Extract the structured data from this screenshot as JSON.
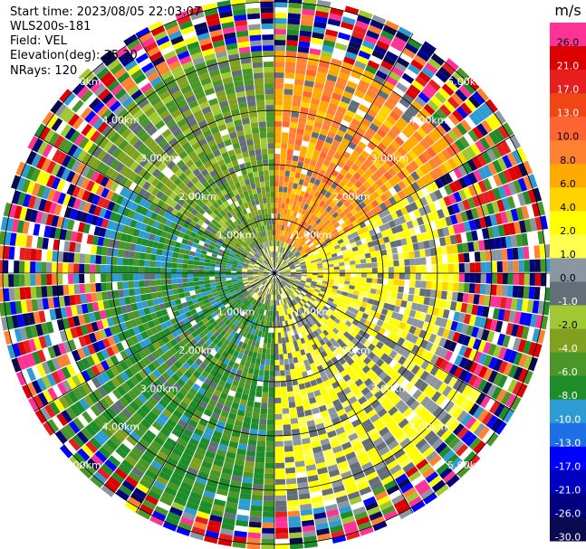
{
  "header": {
    "start_time": "Start time: 2023/08/05 22:03:07",
    "instrument": "WLS200s-181",
    "field": "Field: VEL",
    "elevation": "Elevation(deg): 35.30",
    "nrays": "NRays: 120"
  },
  "colorbar": {
    "unit": "m/s",
    "levels": [
      {
        "label": "-30.0",
        "color": "#0a0a50"
      },
      {
        "label": "-26.0",
        "color": "#000080"
      },
      {
        "label": "-21.0",
        "color": "#0000c0"
      },
      {
        "label": "-17.0",
        "color": "#0000ff"
      },
      {
        "label": "-13.0",
        "color": "#1e6ee6"
      },
      {
        "label": "-10.0",
        "color": "#2e9bd2"
      },
      {
        "label": "-8.0",
        "color": "#1e8c28"
      },
      {
        "label": "-6.0",
        "color": "#4a9628"
      },
      {
        "label": "-4.0",
        "color": "#82a020"
      },
      {
        "label": "-2.0",
        "color": "#a0c832"
      },
      {
        "label": "-1.0",
        "color": "#646e78"
      },
      {
        "label": "0.0",
        "color": "#8c96a0"
      },
      {
        "label": "1.0",
        "color": "#ffff50"
      },
      {
        "label": "2.0",
        "color": "#ffff00"
      },
      {
        "label": "4.0",
        "color": "#ffd200"
      },
      {
        "label": "6.0",
        "color": "#ffaa00"
      },
      {
        "label": "8.0",
        "color": "#ff8232"
      },
      {
        "label": "10.0",
        "color": "#ff6432"
      },
      {
        "label": "13.0",
        "color": "#f04616"
      },
      {
        "label": "17.0",
        "color": "#e61e1e"
      },
      {
        "label": "21.0",
        "color": "#dc0000"
      },
      {
        "label": "26.0",
        "color": "#ff3296"
      }
    ]
  },
  "chart_data": {
    "type": "heatmap",
    "projection": "polar-ppi",
    "field": "VEL",
    "nrays": 120,
    "range_unit": "km",
    "range_rings": [
      "1.00km",
      "2.00km",
      "3.00km",
      "4.00km",
      "5.00km"
    ],
    "ring_values_km": [
      1,
      2,
      3,
      4,
      5
    ],
    "max_range_km": 5.1,
    "spoke_azimuths_deg": [
      0,
      30,
      60,
      90,
      120,
      150,
      180,
      210,
      240,
      270,
      300,
      330
    ],
    "sectors": [
      {
        "az_from": 0,
        "az_to": 60,
        "near_value": 8.0,
        "noise_from_km": 4.1
      },
      {
        "az_from": 60,
        "az_to": 120,
        "near_value": 2.0,
        "noise_from_km": 3.4
      },
      {
        "az_from": 120,
        "az_to": 180,
        "near_value": 1.5,
        "noise_from_km": 4.4
      },
      {
        "az_from": 180,
        "az_to": 240,
        "near_value": -6.0,
        "noise_from_km": 4.6
      },
      {
        "az_from": 240,
        "az_to": 300,
        "near_value": -7.0,
        "noise_from_km": 3.2
      },
      {
        "az_from": 300,
        "az_to": 360,
        "near_value": -3.0,
        "noise_from_km": 4.1
      }
    ]
  }
}
